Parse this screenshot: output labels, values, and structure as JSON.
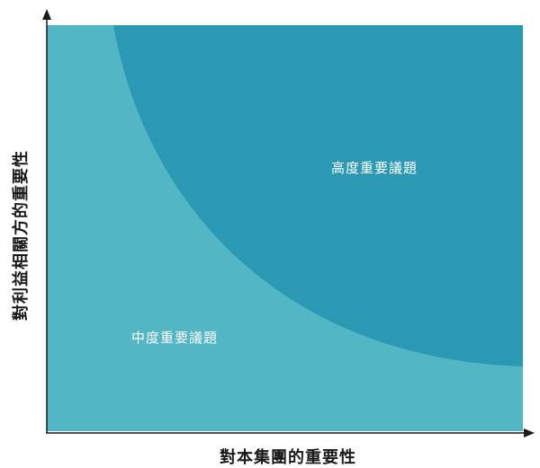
{
  "diagram": {
    "zones": [
      {
        "id": "medium",
        "label": "中度重要議題",
        "color": "#52b6c5"
      },
      {
        "id": "high",
        "label": "高度重要議題",
        "color": "#2b99b3"
      }
    ],
    "x_axis": {
      "title": "對本集團的重要性"
    },
    "y_axis": {
      "title": "對利益相關方的重要性"
    },
    "axis_color": "#1a1a1a"
  }
}
